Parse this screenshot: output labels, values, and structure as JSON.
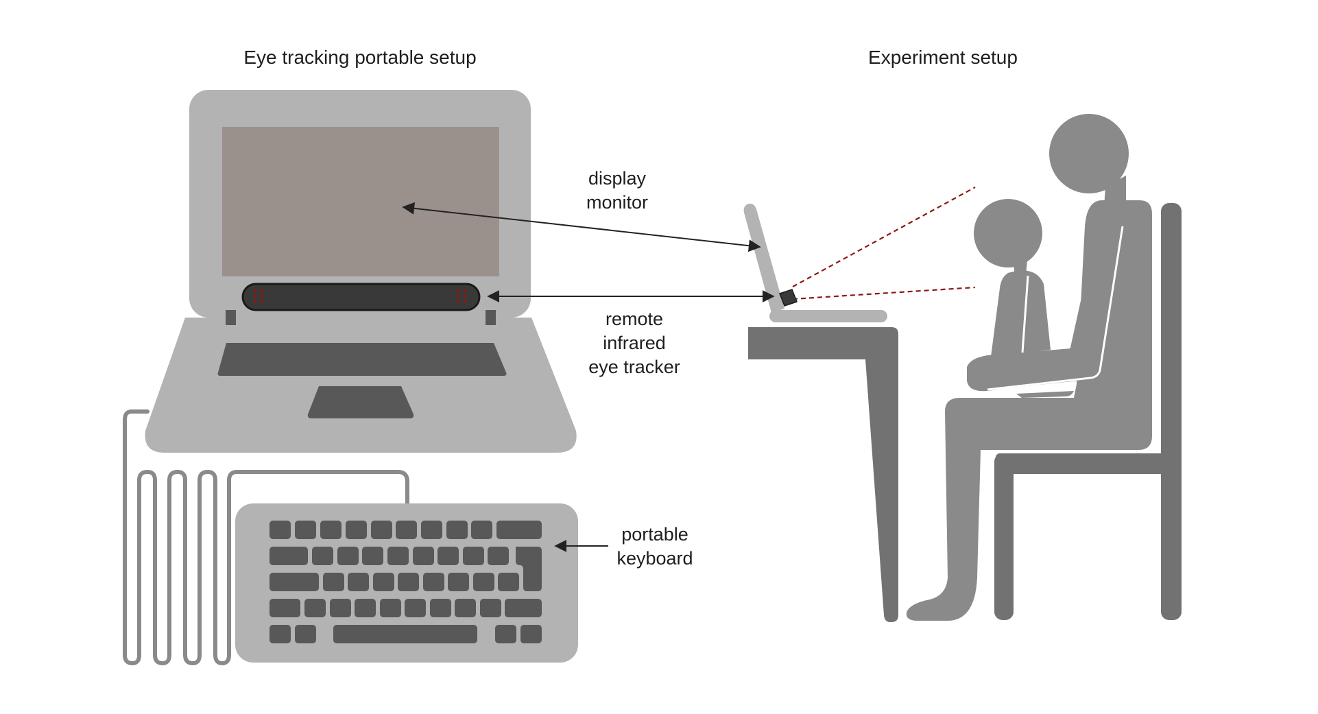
{
  "headings": {
    "left": "Eye tracking portable setup",
    "right": "Experiment setup"
  },
  "labels": {
    "display": [
      "display",
      "monitor"
    ],
    "tracker": [
      "remote",
      "infrared",
      "eye tracker"
    ],
    "keyboard": [
      "portable",
      "keyboard"
    ]
  },
  "colors": {
    "laptop_body": "#b3b3b3",
    "screen": "#9a918d",
    "dark_key": "#585858",
    "tracker_bar": "#3a3939",
    "ir_leds": "#8b1a12",
    "person": "#8a8a8a",
    "furniture": "#737272",
    "gaze_lines": "#8b1a12",
    "arrow": "#222222"
  }
}
